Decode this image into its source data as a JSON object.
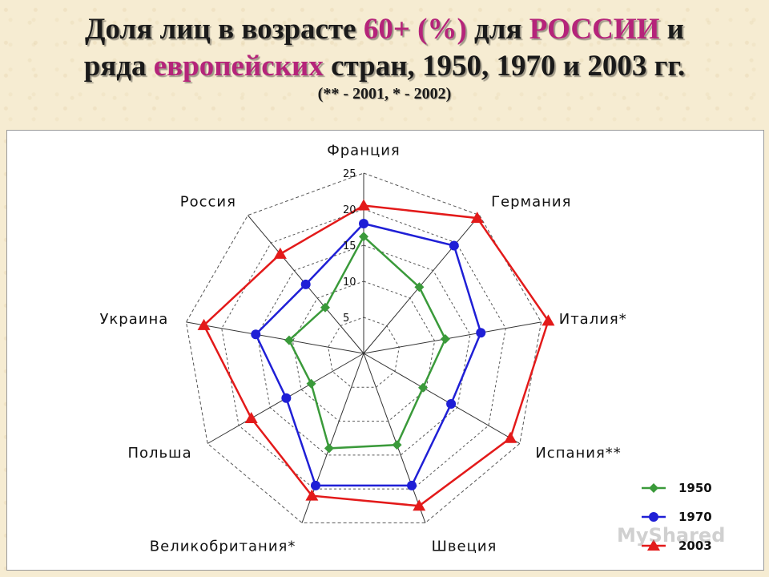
{
  "title": {
    "l1_a": "Доля лиц в возрасте ",
    "l1_b": "60+ (%)",
    "l1_c": " для ",
    "l1_d": "РОССИИ",
    "l1_e": " и",
    "l2_a": "ряда ",
    "l2_b": "европейских",
    "l2_c": " стран, 1950, 1970 и 2003 гг.",
    "subtitle": "(** - 2001, * - 2002)"
  },
  "watermark": "MyShared",
  "chart_data": {
    "type": "radar",
    "categories": [
      "Франция",
      "Германия",
      "Италия*",
      "Испания**",
      "Швеция",
      "Великобритания*",
      "Польша",
      "Украина",
      "Россия"
    ],
    "ticks": [
      5,
      10,
      15,
      20,
      25
    ],
    "rmax": 25,
    "grid": true,
    "legend_position": "bottom-right",
    "series": [
      {
        "name": "1950",
        "color": "#3a9a3a",
        "marker": "diamond",
        "values": [
          16.2,
          12.0,
          11.5,
          9.5,
          13.5,
          14.0,
          8.4,
          10.5,
          8.3
        ]
      },
      {
        "name": "1970",
        "color": "#1f1fd6",
        "marker": "circle",
        "values": [
          18.0,
          19.5,
          16.5,
          14.0,
          19.5,
          19.5,
          12.4,
          15.2,
          12.5
        ]
      },
      {
        "name": "2003",
        "color": "#e31a1a",
        "marker": "triangle",
        "values": [
          20.5,
          24.5,
          26.0,
          23.5,
          22.5,
          21.0,
          18.0,
          22.5,
          18.0
        ]
      }
    ]
  }
}
